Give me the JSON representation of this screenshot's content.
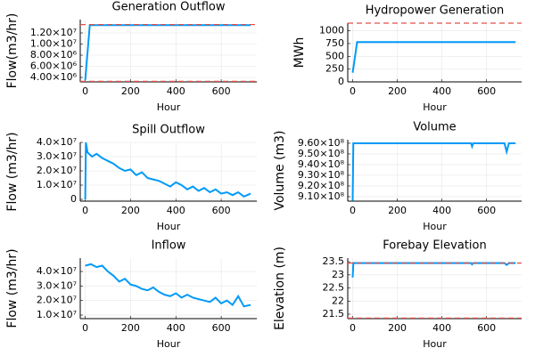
{
  "chart_data": [
    {
      "type": "line",
      "title": "Generation Outflow",
      "xlabel": "Hour",
      "ylabel": "Flow(m3/hr)",
      "x": [
        0,
        20,
        730
      ],
      "values": [
        3500000,
        13400000,
        13400000
      ],
      "color": "#009af9",
      "xlim": [
        -22,
        757
      ],
      "xticks": [
        0,
        200,
        400,
        600
      ],
      "ylim": [
        3200000,
        14400000
      ],
      "yticks": [
        {
          "value": 4000000,
          "label": "4.00×10⁶"
        },
        {
          "value": 6000000,
          "label": "6.00×10⁶"
        },
        {
          "value": 8000000,
          "label": "8.00×10⁶"
        },
        {
          "value": 10000000,
          "label": "1.00×10⁷"
        },
        {
          "value": 12000000,
          "label": "1.20×10⁷"
        }
      ],
      "hlines": [
        13500000,
        3300000
      ],
      "hline_color": "#e0504a",
      "grid": true
    },
    {
      "type": "line",
      "title": "Hydropower Generation",
      "xlabel": "Hour",
      "ylabel": "MWh",
      "x": [
        0,
        20,
        730
      ],
      "values": [
        180,
        780,
        780
      ],
      "color": "#009af9",
      "xlim": [
        -22,
        757
      ],
      "xticks": [
        0,
        200,
        400,
        600
      ],
      "ylim": [
        0,
        1150
      ],
      "yticks": [
        0,
        250,
        500,
        750,
        1000
      ],
      "hlines": [
        1150
      ],
      "hline_color": "#e0504a",
      "grid": true
    },
    {
      "type": "line",
      "title": "Spill Outflow",
      "xlabel": "Hour",
      "ylabel": "Flow (m3/hr)",
      "x": [
        0,
        3,
        10,
        30,
        50,
        75,
        100,
        125,
        150,
        175,
        200,
        225,
        250,
        275,
        300,
        325,
        350,
        375,
        400,
        425,
        450,
        475,
        500,
        525,
        550,
        575,
        600,
        625,
        650,
        675,
        700,
        730
      ],
      "values": [
        0,
        40000000,
        33000000,
        30000000,
        32000000,
        29000000,
        27000000,
        25000000,
        22000000,
        20000000,
        21000000,
        17000000,
        19000000,
        15000000,
        14000000,
        13000000,
        11000000,
        9000000,
        12000000,
        10000000,
        7000000,
        9000000,
        6000000,
        8000000,
        5000000,
        7000000,
        4000000,
        5000000,
        3000000,
        5000000,
        2000000,
        4000000
      ],
      "color": "#009af9",
      "xlim": [
        -22,
        757
      ],
      "xticks": [
        0,
        200,
        400,
        600
      ],
      "ylim": [
        -1250000,
        40000000
      ],
      "yticks": [
        0,
        {
          "value": 10000000,
          "label": "1.0×10⁷"
        },
        {
          "value": 20000000,
          "label": "2.0×10⁷"
        },
        {
          "value": 30000000,
          "label": "3.0×10⁷"
        },
        {
          "value": 40000000,
          "label": "4.0×10⁷"
        }
      ],
      "grid": true
    },
    {
      "type": "line",
      "title": "Volume",
      "xlabel": "Hour",
      "ylabel": "Volume (m3)",
      "x": [
        0,
        3,
        530,
        535,
        540,
        680,
        690,
        700,
        730
      ],
      "values": [
        906000000,
        960000000,
        960000000,
        957000000,
        960000000,
        960000000,
        952000000,
        960000000,
        960000000
      ],
      "color": "#009af9",
      "xlim": [
        -22,
        757
      ],
      "xticks": [
        0,
        200,
        400,
        600
      ],
      "ylim": [
        905800000,
        963300000
      ],
      "yticks": [
        {
          "value": 910000000,
          "label": "9.10×10⁸"
        },
        {
          "value": 920000000,
          "label": "9.20×10⁸"
        },
        {
          "value": 930000000,
          "label": "9.30×10⁸"
        },
        {
          "value": 940000000,
          "label": "9.40×10⁸"
        },
        {
          "value": 950000000,
          "label": "9.50×10⁸"
        },
        {
          "value": 960000000,
          "label": "9.60×10⁸"
        }
      ],
      "grid": true
    },
    {
      "type": "line",
      "title": "Inflow",
      "xlabel": "Hour",
      "ylabel": "Flow (m3/hr)",
      "x": [
        0,
        25,
        50,
        75,
        100,
        125,
        150,
        175,
        200,
        225,
        250,
        275,
        300,
        325,
        350,
        375,
        400,
        425,
        450,
        475,
        500,
        525,
        550,
        575,
        600,
        625,
        650,
        675,
        700,
        730
      ],
      "values": [
        44000000,
        45000000,
        43000000,
        44000000,
        40000000,
        37000000,
        33000000,
        35000000,
        31000000,
        30000000,
        28000000,
        27000000,
        29000000,
        26000000,
        24000000,
        23000000,
        25000000,
        22000000,
        24000000,
        22000000,
        21000000,
        20000000,
        19000000,
        22000000,
        18000000,
        20000000,
        17000000,
        23000000,
        16000000,
        17000000
      ],
      "color": "#009af9",
      "xlim": [
        -22,
        757
      ],
      "xticks": [
        0,
        200,
        400,
        600
      ],
      "ylim": [
        7550000,
        49200000
      ],
      "yticks": [
        {
          "value": 10000000,
          "label": "1.0×10⁷"
        },
        {
          "value": 20000000,
          "label": "2.0×10⁷"
        },
        {
          "value": 30000000,
          "label": "3.0×10⁷"
        },
        {
          "value": 40000000,
          "label": "4.0×10⁷"
        }
      ],
      "grid": true
    },
    {
      "type": "line",
      "title": "Forebay Elevation",
      "xlabel": "Hour",
      "ylabel": "Elevation (m)",
      "x": [
        0,
        3,
        530,
        535,
        540,
        680,
        690,
        700,
        730
      ],
      "values": [
        22.9,
        23.45,
        23.45,
        23.4,
        23.45,
        23.45,
        23.38,
        23.45,
        23.45
      ],
      "color": "#009af9",
      "xlim": [
        -22,
        757
      ],
      "xticks": [
        0,
        200,
        400,
        600
      ],
      "ylim": [
        21.33,
        23.64
      ],
      "yticks": [
        21.5,
        22,
        22.5,
        23,
        23.5
      ],
      "hlines": [
        23.45,
        21.35
      ],
      "hline_color": "#e0504a",
      "grid": true
    }
  ]
}
